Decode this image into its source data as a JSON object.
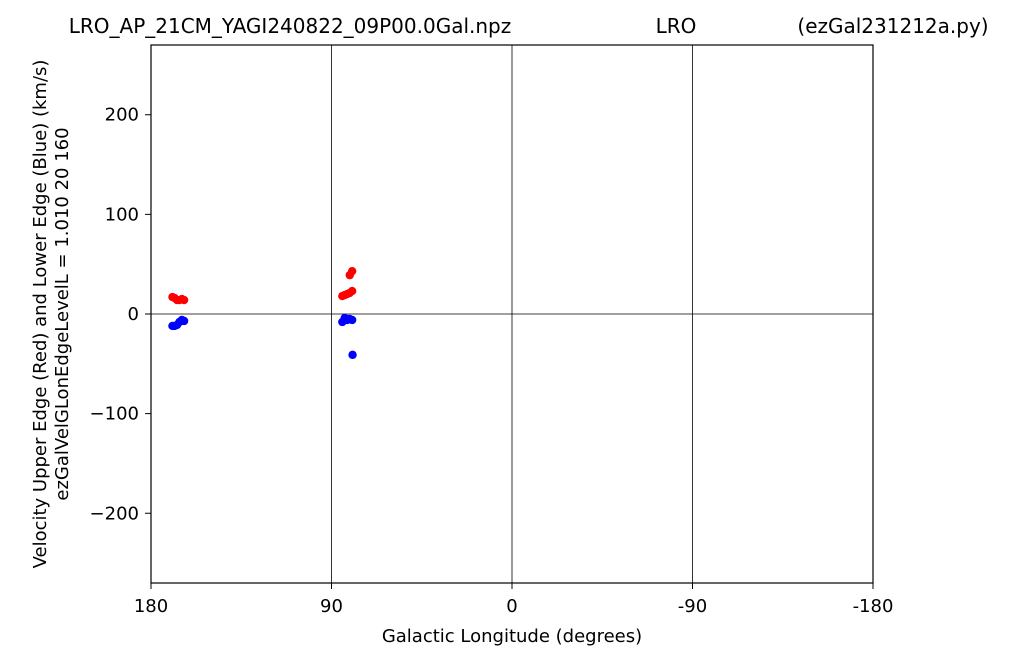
{
  "chart_data": {
    "type": "scatter",
    "title_left": "LRO_AP_21CM_YAGI240822_09P00.0Gal.npz",
    "title_center": "LRO",
    "title_right": "(ezGal231212a.py)",
    "xlabel": "Galactic Longitude (degrees)",
    "ylabel_line1": "Velocity Upper Edge (Red) and Lower Edge (Blue)  (km/s)",
    "ylabel_line2": "ezGalVelGLonEdgeLevelL = 1.010  20  160",
    "xlim": [
      180,
      -180
    ],
    "ylim": [
      -270,
      270
    ],
    "x_ticks": [
      {
        "value": 180,
        "label": "180"
      },
      {
        "value": 90,
        "label": "90"
      },
      {
        "value": 0,
        "label": "0"
      },
      {
        "value": -90,
        "label": "-90"
      },
      {
        "value": -180,
        "label": "-180"
      }
    ],
    "y_ticks": [
      {
        "value": 200,
        "label": "200"
      },
      {
        "value": 100,
        "label": "100"
      },
      {
        "value": 0,
        "label": "0"
      },
      {
        "value": -100,
        "label": "−100"
      },
      {
        "value": -200,
        "label": "−200"
      }
    ],
    "vertical_gridlines": [
      90,
      0,
      -90
    ],
    "horizontal_gridlines": [
      0
    ],
    "series": [
      {
        "name": "Upper Edge",
        "color": "#ff0000",
        "points": [
          {
            "x": 169.3,
            "y": 17
          },
          {
            "x": 168.2,
            "y": 16
          },
          {
            "x": 167.0,
            "y": 14
          },
          {
            "x": 165.8,
            "y": 14
          },
          {
            "x": 164.6,
            "y": 15
          },
          {
            "x": 163.5,
            "y": 14
          },
          {
            "x": 84.6,
            "y": 18
          },
          {
            "x": 83.4,
            "y": 19
          },
          {
            "x": 82.2,
            "y": 20
          },
          {
            "x": 81.0,
            "y": 21
          },
          {
            "x": 79.7,
            "y": 23
          },
          {
            "x": 80.9,
            "y": 39
          },
          {
            "x": 79.7,
            "y": 43
          }
        ]
      },
      {
        "name": "Lower Edge",
        "color": "#0000ff",
        "points": [
          {
            "x": 169.3,
            "y": -12
          },
          {
            "x": 168.2,
            "y": -12
          },
          {
            "x": 167.0,
            "y": -11
          },
          {
            "x": 165.8,
            "y": -8
          },
          {
            "x": 164.6,
            "y": -6
          },
          {
            "x": 163.5,
            "y": -7
          },
          {
            "x": 84.6,
            "y": -8
          },
          {
            "x": 83.4,
            "y": -4
          },
          {
            "x": 82.2,
            "y": -6
          },
          {
            "x": 81.0,
            "y": -5
          },
          {
            "x": 79.7,
            "y": -6
          },
          {
            "x": 79.5,
            "y": -41
          }
        ]
      }
    ]
  }
}
